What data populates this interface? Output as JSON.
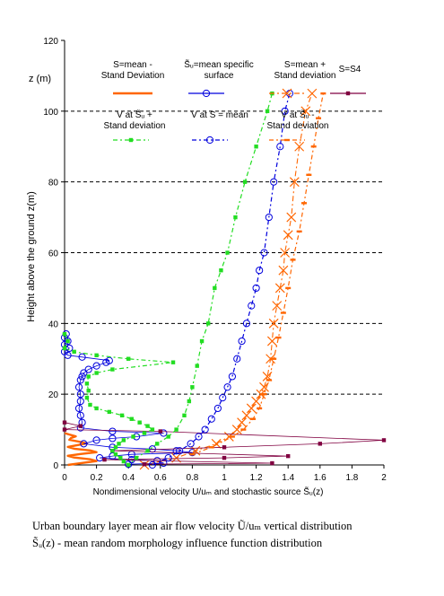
{
  "chart_data": {
    "type": "line",
    "title": "",
    "xlabel": "Nondimensional velocity  U/uₘ and stochastic source  S̃ᵤ(z)",
    "ylabel": "Height above the ground  z(m)",
    "z_unit": "z (m)",
    "xlim": [
      0,
      2
    ],
    "ylim": [
      0,
      120
    ],
    "x_ticks": [
      "0",
      "0.2",
      "0.4",
      "0.6",
      "0.8",
      "1",
      "1.2",
      "1.4",
      "1.6",
      "1.8",
      "2"
    ],
    "y_ticks": [
      "0",
      "20",
      "40",
      "60",
      "80",
      "100",
      "120"
    ],
    "y_grid": "dashed horizontal lines at 20, 40, 60, 80, 100",
    "legend_placement": "top, inside plot area",
    "series": [
      {
        "name": "S=mean -\nStand  Deviation",
        "color": "#ff6600",
        "style": "solid thick, no markers",
        "points": [
          [
            0.02,
            0.0
          ],
          [
            0.12,
            0.6
          ],
          [
            0.2,
            1.1
          ],
          [
            0.16,
            1.6
          ],
          [
            0.06,
            2.1
          ],
          [
            0.02,
            2.6
          ],
          [
            0.1,
            3.1
          ],
          [
            0.2,
            3.6
          ],
          [
            0.16,
            4.1
          ],
          [
            0.06,
            4.6
          ],
          [
            0.02,
            5.1
          ],
          [
            0.08,
            5.6
          ],
          [
            0.14,
            6.1
          ],
          [
            0.09,
            6.6
          ],
          [
            0.03,
            7.1
          ],
          [
            0.04,
            7.6
          ],
          [
            0.07,
            8.1
          ],
          [
            0.03,
            8.6
          ],
          [
            0.0,
            9.0
          ]
        ]
      },
      {
        "name": "S̃ᵤ=mean specific\nsurface",
        "color": "#0000dd",
        "style": "thin line, open circles",
        "points": [
          [
            0.01,
            37
          ],
          [
            0.0,
            36
          ],
          [
            0.02,
            35
          ],
          [
            0.0,
            34
          ],
          [
            0.03,
            33
          ],
          [
            0.0,
            32
          ],
          [
            0.02,
            31
          ],
          [
            0.11,
            30.5
          ],
          [
            0.28,
            29.5
          ],
          [
            0.26,
            29
          ],
          [
            0.2,
            28
          ],
          [
            0.15,
            27
          ],
          [
            0.12,
            26
          ],
          [
            0.11,
            25
          ],
          [
            0.1,
            24
          ],
          [
            0.09,
            22
          ],
          [
            0.1,
            20
          ],
          [
            0.1,
            18
          ],
          [
            0.09,
            16
          ],
          [
            0.1,
            14
          ],
          [
            0.11,
            12
          ],
          [
            0.1,
            10.5
          ],
          [
            0.3,
            9.5
          ],
          [
            0.62,
            9
          ],
          [
            0.45,
            8
          ],
          [
            0.3,
            7.5
          ],
          [
            0.2,
            7
          ],
          [
            0.12,
            6
          ],
          [
            0.3,
            5
          ],
          [
            0.55,
            4.5
          ],
          [
            0.7,
            4
          ],
          [
            0.8,
            3.5
          ],
          [
            0.42,
            3
          ],
          [
            0.3,
            2.5
          ],
          [
            0.22,
            2
          ],
          [
            0.42,
            1.5
          ],
          [
            0.58,
            1.2
          ],
          [
            0.62,
            0.5
          ],
          [
            0.4,
            0.2
          ]
        ]
      },
      {
        "name": "S=mean +\nStand deviation",
        "color": "#ff6600",
        "style": "dash-dot, X markers",
        "points": [
          [
            0.5,
            0
          ],
          [
            0.7,
            2
          ],
          [
            0.82,
            4
          ],
          [
            0.95,
            6
          ],
          [
            1.03,
            8
          ],
          [
            1.08,
            10
          ],
          [
            1.11,
            12
          ],
          [
            1.14,
            14
          ],
          [
            1.17,
            16
          ],
          [
            1.2,
            18
          ],
          [
            1.23,
            20
          ],
          [
            1.25,
            22
          ],
          [
            1.27,
            25
          ],
          [
            1.29,
            30
          ],
          [
            1.3,
            35
          ],
          [
            1.31,
            40
          ],
          [
            1.33,
            45
          ],
          [
            1.35,
            50
          ],
          [
            1.37,
            55
          ],
          [
            1.38,
            60
          ],
          [
            1.4,
            65
          ],
          [
            1.42,
            70
          ],
          [
            1.44,
            80
          ],
          [
            1.47,
            90
          ],
          [
            1.51,
            100
          ],
          [
            1.55,
            105
          ]
        ]
      },
      {
        "name": "S=S4",
        "color": "#800040",
        "style": "thin solid, square markers",
        "points": [
          [
            0.0,
            12
          ],
          [
            0.1,
            11
          ],
          [
            0.0,
            10
          ],
          [
            0.6,
            9.5
          ],
          [
            2.0,
            7
          ],
          [
            1.6,
            6
          ],
          [
            1.0,
            5
          ],
          [
            0.3,
            4
          ],
          [
            1.4,
            2.5
          ],
          [
            1.0,
            2
          ],
          [
            0.25,
            1.5
          ],
          [
            1.3,
            0.5
          ],
          [
            0.5,
            0.2
          ]
        ]
      },
      {
        "name": "V  at S̃ᵤ +\nStand deviation",
        "color": "#22dd22",
        "style": "dash-dot, small squares",
        "points": [
          [
            0.0,
            37
          ],
          [
            0.02,
            35
          ],
          [
            0.0,
            33
          ],
          [
            0.06,
            32
          ],
          [
            0.2,
            31
          ],
          [
            0.4,
            30
          ],
          [
            0.68,
            29
          ],
          [
            0.3,
            27
          ],
          [
            0.2,
            26
          ],
          [
            0.15,
            25
          ],
          [
            0.14,
            23
          ],
          [
            0.15,
            21
          ],
          [
            0.14,
            19
          ],
          [
            0.16,
            17
          ],
          [
            0.2,
            16
          ],
          [
            0.28,
            15
          ],
          [
            0.36,
            14
          ],
          [
            0.42,
            13
          ],
          [
            0.47,
            12
          ],
          [
            0.52,
            11
          ],
          [
            0.55,
            10
          ],
          [
            0.5,
            9
          ],
          [
            0.43,
            8
          ],
          [
            0.37,
            7
          ],
          [
            0.34,
            6
          ],
          [
            0.32,
            5
          ],
          [
            0.3,
            4
          ],
          [
            0.32,
            3
          ],
          [
            0.35,
            2
          ],
          [
            0.37,
            1
          ],
          [
            0.4,
            0
          ],
          [
            0.45,
            2
          ],
          [
            0.52,
            4
          ],
          [
            0.58,
            6
          ],
          [
            0.65,
            8
          ],
          [
            0.7,
            10
          ],
          [
            0.75,
            14
          ],
          [
            0.78,
            18
          ],
          [
            0.8,
            22
          ],
          [
            0.83,
            28
          ],
          [
            0.86,
            35
          ],
          [
            0.9,
            40
          ],
          [
            0.94,
            50
          ],
          [
            0.98,
            55
          ],
          [
            1.02,
            60
          ],
          [
            1.07,
            70
          ],
          [
            1.13,
            80
          ],
          [
            1.2,
            90
          ],
          [
            1.27,
            100
          ],
          [
            1.3,
            105
          ]
        ]
      },
      {
        "name": "V  at S = mean",
        "color": "#0000dd",
        "style": "dash-dot, open circles",
        "points": [
          [
            0.55,
            0
          ],
          [
            0.65,
            2
          ],
          [
            0.72,
            4
          ],
          [
            0.79,
            6
          ],
          [
            0.84,
            8
          ],
          [
            0.88,
            10
          ],
          [
            0.92,
            13
          ],
          [
            0.96,
            16
          ],
          [
            0.99,
            19
          ],
          [
            1.02,
            22
          ],
          [
            1.05,
            25
          ],
          [
            1.08,
            30
          ],
          [
            1.11,
            35
          ],
          [
            1.14,
            40
          ],
          [
            1.17,
            45
          ],
          [
            1.2,
            50
          ],
          [
            1.22,
            55
          ],
          [
            1.25,
            60
          ],
          [
            1.28,
            70
          ],
          [
            1.31,
            80
          ],
          [
            1.35,
            90
          ],
          [
            1.38,
            100
          ],
          [
            1.41,
            105
          ]
        ]
      },
      {
        "name": "V  at S̃ᵤ -\nStand deviation",
        "color": "#ff6600",
        "style": "dash-dot, small dashes",
        "points": [
          [
            0.8,
            3
          ],
          [
            0.92,
            5
          ],
          [
            1.05,
            8
          ],
          [
            1.12,
            10
          ],
          [
            1.18,
            13
          ],
          [
            1.22,
            16
          ],
          [
            1.25,
            20
          ],
          [
            1.28,
            24
          ],
          [
            1.31,
            30
          ],
          [
            1.34,
            36
          ],
          [
            1.37,
            43
          ],
          [
            1.4,
            50
          ],
          [
            1.43,
            58
          ],
          [
            1.47,
            66
          ],
          [
            1.5,
            74
          ],
          [
            1.53,
            82
          ],
          [
            1.56,
            90
          ],
          [
            1.59,
            98
          ],
          [
            1.62,
            105
          ]
        ]
      }
    ]
  },
  "caption": {
    "line1": "Urban boundary layer mean air flow velocity  Ũ/uₘ vertical distribution",
    "line2": "S̃ᵤ(z) - mean random morphology influence function distribution"
  }
}
